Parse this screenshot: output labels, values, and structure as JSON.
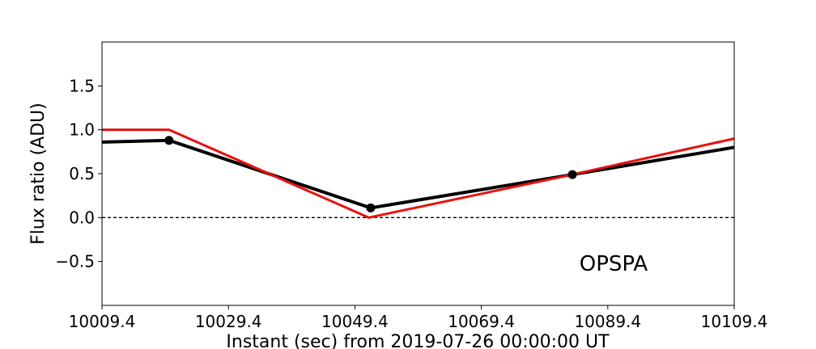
{
  "chart_data": {
    "type": "line",
    "xlabel": "Instant (sec) from 2019-07-26 00:00:00 UT",
    "ylabel": "Flux ratio (ADU)",
    "annotation": "OPSPA",
    "xlim": [
      10009.4,
      10109.4
    ],
    "ylim": [
      -1.0,
      2.0
    ],
    "x_ticks": [
      10009.4,
      10029.4,
      10049.4,
      10069.4,
      10089.4,
      10109.4
    ],
    "x_tick_labels": [
      "10009.4",
      "10029.4",
      "10049.4",
      "10069.4",
      "10089.4",
      "10109.4"
    ],
    "y_ticks": [
      -0.5,
      0.0,
      0.5,
      1.0,
      1.5
    ],
    "y_tick_labels": [
      "−0.5",
      "0.0",
      "0.5",
      "1.0",
      "1.5"
    ],
    "reference_line": {
      "y": 0.0,
      "style": "dashed",
      "color": "#000000"
    },
    "grid": false,
    "series": [
      {
        "color": "#000000",
        "markers": true,
        "x": [
          10009.4,
          10020.0,
          10051.9,
          10083.8,
          10109.4
        ],
        "y": [
          0.86,
          0.88,
          0.11,
          0.49,
          0.8
        ]
      },
      {
        "color": "#e8110f",
        "markers": false,
        "x": [
          10009.4,
          10020.0,
          10051.6,
          10083.8,
          10109.4
        ],
        "y": [
          1.0,
          1.0,
          0.0,
          0.49,
          0.9
        ]
      }
    ]
  }
}
